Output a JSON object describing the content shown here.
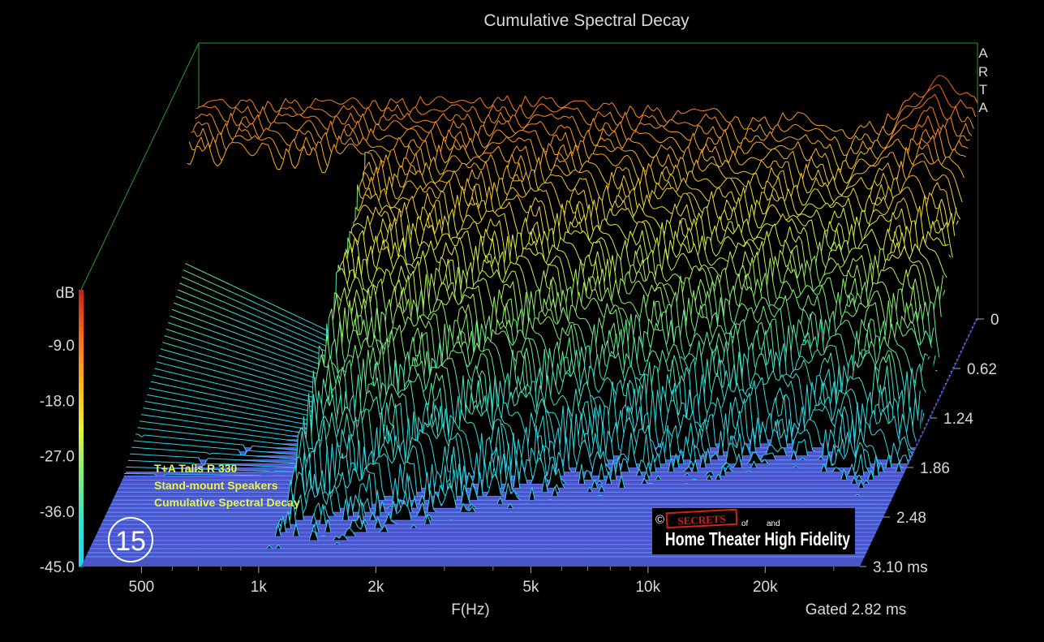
{
  "chart_data": {
    "type": "waterfall",
    "title": "Cumulative Spectral Decay",
    "xlabel": "F(Hz)",
    "ylabel": "dB",
    "zlabel": "ms",
    "x_scale": "log",
    "xlim": [
      350,
      35000
    ],
    "x_ticks": [
      "500",
      "1k",
      "2k",
      "5k",
      "10k",
      "20k"
    ],
    "x_tick_values": [
      500,
      1000,
      2000,
      5000,
      10000,
      20000
    ],
    "ylim": [
      -45,
      0
    ],
    "y_ticks": [
      "-9.0",
      "-18.0",
      "-27.0",
      "-36.0",
      "-45.0"
    ],
    "y_tick_values": [
      -9,
      -18,
      -27,
      -36,
      -45
    ],
    "z_ticks": [
      "0",
      "0.62",
      "1.24",
      "1.86",
      "2.48",
      "3.10 ms"
    ],
    "z_tick_values": [
      0,
      0.62,
      1.24,
      1.86,
      2.48,
      3.1
    ],
    "gating_note": "Gated 2.82 ms",
    "software_mark": [
      "A",
      "R",
      "T",
      "A"
    ],
    "slices": 60,
    "colormap": [
      "#2ad0f0",
      "#37e0d0",
      "#7ef07a",
      "#e8f23a",
      "#ffb020",
      "#ff6a1a",
      "#c61f1a"
    ],
    "floor_color": "#4a55c8",
    "initial_response": [
      {
        "f": 350,
        "db": -9
      },
      {
        "f": 600,
        "db": -9
      },
      {
        "f": 1000,
        "db": -8.8
      },
      {
        "f": 2000,
        "db": -8.6
      },
      {
        "f": 2600,
        "db": -8.4
      },
      {
        "f": 3500,
        "db": -9.4
      },
      {
        "f": 5000,
        "db": -10
      },
      {
        "f": 6000,
        "db": -11
      },
      {
        "f": 7000,
        "db": -10
      },
      {
        "f": 9000,
        "db": -12
      },
      {
        "f": 12000,
        "db": -11
      },
      {
        "f": 16000,
        "db": -14
      },
      {
        "f": 20000,
        "db": -12
      },
      {
        "f": 24000,
        "db": -8
      },
      {
        "f": 28000,
        "db": -5
      },
      {
        "f": 35000,
        "db": -9
      }
    ]
  },
  "annotation": {
    "lines": [
      "T+A Talis R 330",
      "Stand-mount Speakers",
      "Cumulative Spectral Decay"
    ],
    "badge": "15"
  },
  "logo": {
    "copyright": "©",
    "secrets": "SECRETS",
    "of": "of",
    "and": "and",
    "main": "Home Theater High Fidelity"
  }
}
